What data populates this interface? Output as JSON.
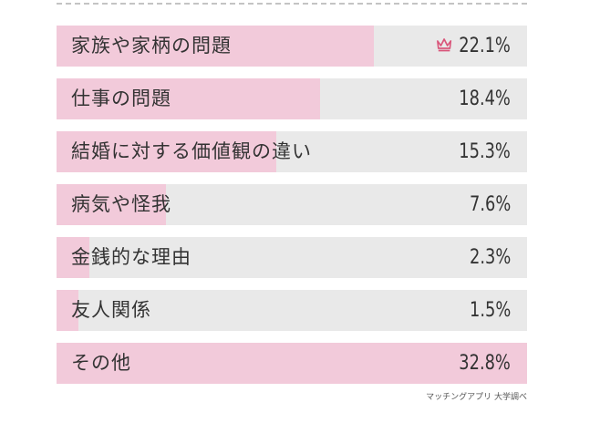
{
  "chart_data": {
    "type": "bar",
    "categories": [
      "家族や家柄の問題",
      "仕事の問題",
      "結婚に対する価値観の違い",
      "病気や怪我",
      "金銭的な理由",
      "友人関係",
      "その他"
    ],
    "values": [
      22.1,
      18.4,
      15.3,
      7.6,
      2.3,
      1.5,
      32.8
    ],
    "value_labels": [
      "22.1%",
      "18.4%",
      "15.3%",
      "7.6%",
      "2.3%",
      "1.5%",
      "32.8%"
    ],
    "title": "",
    "xlabel": "",
    "ylabel": "",
    "xlim": [
      0,
      32.8
    ],
    "top_rank_icon": "crown-icon",
    "grid": false,
    "colors": {
      "fill": "#f2cada",
      "track": "#e9e9e9",
      "crown": "#d9557a",
      "text": "#333333"
    }
  },
  "source": "マッチングアプリ 大学調べ"
}
